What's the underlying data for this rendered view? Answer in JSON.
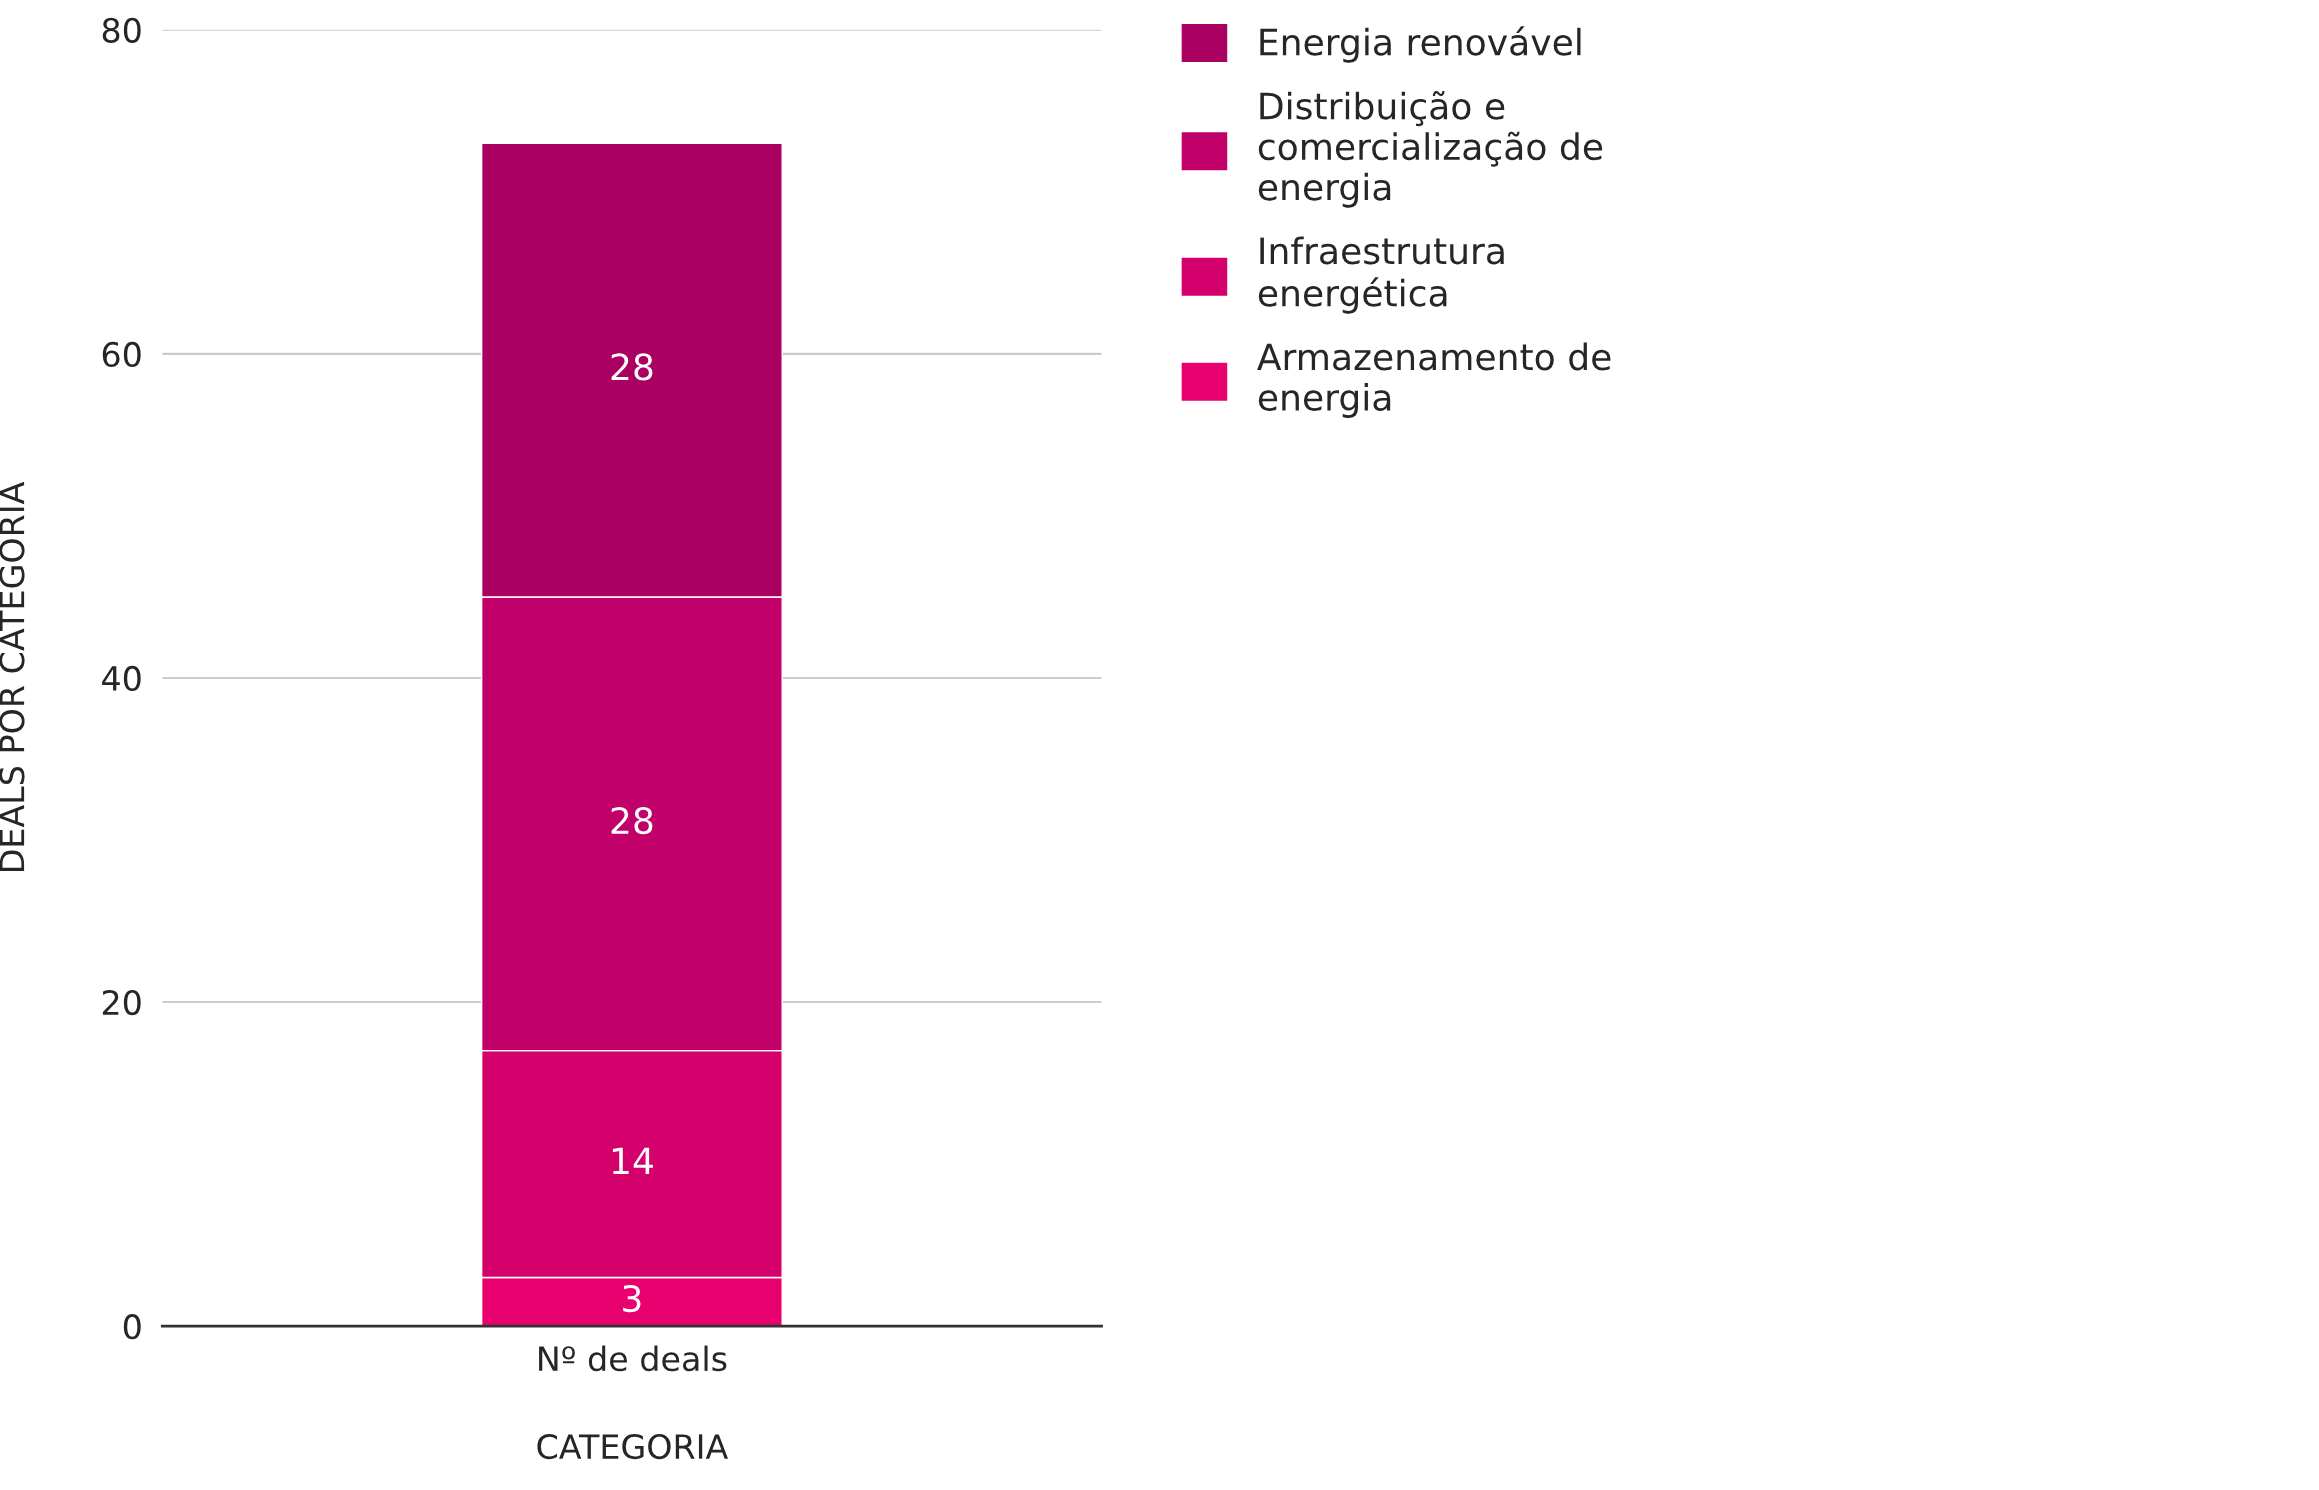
{
  "chart_data": {
    "type": "bar",
    "stacked": true,
    "categories": [
      "Nº de deals"
    ],
    "xlabel": "CATEGORIA",
    "ylabel": "DEALS POR CATEGORIA",
    "ylim": [
      0,
      80
    ],
    "yticks": [
      0,
      20,
      40,
      60,
      80
    ],
    "grid": "y",
    "legend": "top right",
    "data_labels": true,
    "series": [
      {
        "name": "Armazenamento de energia",
        "color": "#e8006f",
        "values": [
          3
        ]
      },
      {
        "name": "Infraestrutura energética",
        "color": "#d4006b",
        "values": [
          14
        ]
      },
      {
        "name": "Distribuição e comercialização de energia",
        "color": "#c1006a",
        "values": [
          28
        ]
      },
      {
        "name": "Energia renovável",
        "color": "#a90062",
        "values": [
          28
        ]
      }
    ]
  }
}
